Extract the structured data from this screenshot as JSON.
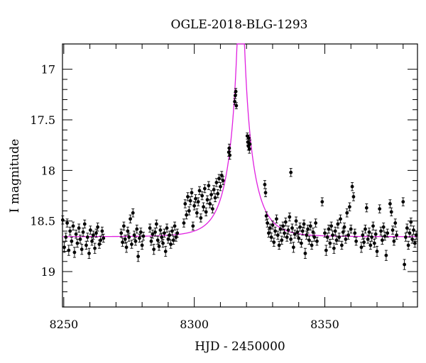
{
  "chart_data": {
    "type": "scatter",
    "title": "OGLE-2018-BLG-1293",
    "xlabel": "HJD - 2450000",
    "ylabel": "I magnitude",
    "xlim": [
      8249.5,
      8385.5
    ],
    "ylim": [
      19.35,
      16.75
    ],
    "y_inverted": true,
    "x_ticks": [
      8250,
      8300,
      8350
    ],
    "y_ticks": [
      17,
      17.5,
      18,
      18.5,
      19
    ],
    "grid": false,
    "colors": {
      "points": "#000000",
      "model": "#e020e0"
    },
    "model": {
      "description_source": "magenta curve",
      "baseline_mag": 18.655,
      "t0": 8317.8,
      "u0": 0.048,
      "tE": 8.5
    },
    "points": [
      [
        8249.6,
        18.49,
        0.04
      ],
      [
        8250.2,
        18.76,
        0.05
      ],
      [
        8250.8,
        18.66,
        0.04
      ],
      [
        8251.3,
        18.52,
        0.04
      ],
      [
        8251.9,
        18.79,
        0.05
      ],
      [
        8252.4,
        18.6,
        0.04
      ],
      [
        8253.0,
        18.7,
        0.04
      ],
      [
        8253.6,
        18.55,
        0.04
      ],
      [
        8254.1,
        18.81,
        0.05
      ],
      [
        8254.7,
        18.63,
        0.04
      ],
      [
        8255.2,
        18.72,
        0.04
      ],
      [
        8255.8,
        18.57,
        0.04
      ],
      [
        8256.3,
        18.68,
        0.04
      ],
      [
        8256.9,
        18.78,
        0.05
      ],
      [
        8257.4,
        18.61,
        0.04
      ],
      [
        8258.0,
        18.53,
        0.04
      ],
      [
        8258.6,
        18.74,
        0.04
      ],
      [
        8259.1,
        18.66,
        0.04
      ],
      [
        8259.7,
        18.82,
        0.05
      ],
      [
        8260.2,
        18.59,
        0.04
      ],
      [
        8260.8,
        18.7,
        0.04
      ],
      [
        8261.3,
        18.64,
        0.04
      ],
      [
        8261.9,
        18.77,
        0.05
      ],
      [
        8262.4,
        18.62,
        0.04
      ],
      [
        8263.0,
        18.56,
        0.04
      ],
      [
        8263.6,
        18.73,
        0.04
      ],
      [
        8264.1,
        18.69,
        0.04
      ],
      [
        8264.7,
        18.6,
        0.04
      ],
      [
        8265.2,
        18.67,
        0.04
      ],
      [
        8272.0,
        18.62,
        0.04
      ],
      [
        8272.5,
        18.71,
        0.04
      ],
      [
        8273.0,
        18.55,
        0.04
      ],
      [
        8273.5,
        18.68,
        0.04
      ],
      [
        8274.0,
        18.76,
        0.05
      ],
      [
        8274.5,
        18.6,
        0.04
      ],
      [
        8275.0,
        18.66,
        0.04
      ],
      [
        8275.5,
        18.48,
        0.04
      ],
      [
        8276.0,
        18.73,
        0.04
      ],
      [
        8276.5,
        18.42,
        0.04
      ],
      [
        8277.0,
        18.64,
        0.04
      ],
      [
        8277.5,
        18.7,
        0.04
      ],
      [
        8278.0,
        18.58,
        0.04
      ],
      [
        8278.5,
        18.85,
        0.05
      ],
      [
        8279.0,
        18.67,
        0.04
      ],
      [
        8279.5,
        18.61,
        0.04
      ],
      [
        8280.0,
        18.74,
        0.04
      ],
      [
        8280.5,
        18.65,
        0.04
      ],
      [
        8283.0,
        18.57,
        0.04
      ],
      [
        8283.5,
        18.7,
        0.04
      ],
      [
        8284.0,
        18.63,
        0.04
      ],
      [
        8284.5,
        18.78,
        0.05
      ],
      [
        8285.0,
        18.61,
        0.04
      ],
      [
        8285.5,
        18.53,
        0.04
      ],
      [
        8286.0,
        18.69,
        0.04
      ],
      [
        8286.5,
        18.75,
        0.04
      ],
      [
        8287.0,
        18.59,
        0.04
      ],
      [
        8287.5,
        18.66,
        0.04
      ],
      [
        8288.0,
        18.72,
        0.04
      ],
      [
        8288.5,
        18.62,
        0.04
      ],
      [
        8289.0,
        18.8,
        0.05
      ],
      [
        8289.5,
        18.57,
        0.04
      ],
      [
        8290.0,
        18.68,
        0.04
      ],
      [
        8290.5,
        18.64,
        0.04
      ],
      [
        8291.0,
        18.73,
        0.04
      ],
      [
        8291.5,
        18.6,
        0.04
      ],
      [
        8292.0,
        18.69,
        0.04
      ],
      [
        8292.5,
        18.55,
        0.04
      ],
      [
        8293.0,
        18.66,
        0.04
      ],
      [
        8293.5,
        18.62,
        0.04
      ],
      [
        8296.0,
        18.52,
        0.04
      ],
      [
        8296.5,
        18.33,
        0.04
      ],
      [
        8297.0,
        18.44,
        0.04
      ],
      [
        8297.5,
        18.26,
        0.04
      ],
      [
        8298.0,
        18.4,
        0.04
      ],
      [
        8298.5,
        18.3,
        0.04
      ],
      [
        8299.0,
        18.22,
        0.04
      ],
      [
        8299.5,
        18.55,
        0.04
      ],
      [
        8300.0,
        18.35,
        0.04
      ],
      [
        8300.5,
        18.28,
        0.04
      ],
      [
        8301.0,
        18.42,
        0.04
      ],
      [
        8301.5,
        18.31,
        0.04
      ],
      [
        8302.0,
        18.2,
        0.04
      ],
      [
        8302.5,
        18.47,
        0.04
      ],
      [
        8303.0,
        18.25,
        0.04
      ],
      [
        8303.5,
        18.36,
        0.04
      ],
      [
        8304.0,
        18.18,
        0.04
      ],
      [
        8304.5,
        18.41,
        0.04
      ],
      [
        8305.0,
        18.29,
        0.04
      ],
      [
        8305.5,
        18.15,
        0.04
      ],
      [
        8306.0,
        18.33,
        0.04
      ],
      [
        8306.5,
        18.24,
        0.04
      ],
      [
        8307.0,
        18.38,
        0.04
      ],
      [
        8307.5,
        18.19,
        0.04
      ],
      [
        8308.0,
        18.27,
        0.04
      ],
      [
        8308.5,
        18.12,
        0.04
      ],
      [
        8309.0,
        18.23,
        0.04
      ],
      [
        8309.5,
        18.08,
        0.04
      ],
      [
        8310.0,
        18.16,
        0.04
      ],
      [
        8310.5,
        18.05,
        0.04
      ],
      [
        8311.0,
        18.1,
        0.04
      ],
      [
        8313.2,
        17.82,
        0.04
      ],
      [
        8313.4,
        17.78,
        0.04
      ],
      [
        8313.6,
        17.85,
        0.04
      ],
      [
        8315.5,
        17.32,
        0.03
      ],
      [
        8315.7,
        17.26,
        0.03
      ],
      [
        8315.9,
        17.22,
        0.03
      ],
      [
        8316.1,
        17.36,
        0.03
      ],
      [
        8320.3,
        17.66,
        0.03
      ],
      [
        8320.5,
        17.72,
        0.03
      ],
      [
        8320.7,
        17.76,
        0.04
      ],
      [
        8320.9,
        17.68,
        0.03
      ],
      [
        8321.1,
        17.79,
        0.04
      ],
      [
        8321.3,
        17.74,
        0.04
      ],
      [
        8327.0,
        18.14,
        0.04
      ],
      [
        8327.3,
        18.22,
        0.04
      ],
      [
        8327.6,
        18.45,
        0.04
      ],
      [
        8328.0,
        18.52,
        0.04
      ],
      [
        8328.5,
        18.62,
        0.04
      ],
      [
        8329.0,
        18.57,
        0.04
      ],
      [
        8329.5,
        18.66,
        0.04
      ],
      [
        8330.0,
        18.54,
        0.04
      ],
      [
        8330.5,
        18.71,
        0.04
      ],
      [
        8331.0,
        18.6,
        0.04
      ],
      [
        8331.5,
        18.48,
        0.04
      ],
      [
        8332.0,
        18.64,
        0.04
      ],
      [
        8332.5,
        18.74,
        0.04
      ],
      [
        8333.0,
        18.58,
        0.04
      ],
      [
        8333.5,
        18.69,
        0.04
      ],
      [
        8334.0,
        18.55,
        0.04
      ],
      [
        8334.5,
        18.62,
        0.04
      ],
      [
        8335.0,
        18.51,
        0.04
      ],
      [
        8335.5,
        18.66,
        0.04
      ],
      [
        8336.0,
        18.59,
        0.04
      ],
      [
        8336.5,
        18.46,
        0.04
      ],
      [
        8337.0,
        18.68,
        0.04
      ],
      [
        8337.5,
        18.57,
        0.04
      ],
      [
        8338.0,
        18.76,
        0.05
      ],
      [
        8338.5,
        18.63,
        0.04
      ],
      [
        8339.0,
        18.5,
        0.04
      ],
      [
        8339.5,
        18.61,
        0.04
      ],
      [
        8340.0,
        18.67,
        0.04
      ],
      [
        8340.5,
        18.56,
        0.04
      ],
      [
        8341.0,
        18.72,
        0.04
      ],
      [
        8341.5,
        18.6,
        0.04
      ],
      [
        8342.0,
        18.53,
        0.04
      ],
      [
        8342.5,
        18.82,
        0.05
      ],
      [
        8343.0,
        18.64,
        0.04
      ],
      [
        8343.5,
        18.58,
        0.04
      ],
      [
        8344.0,
        18.69,
        0.04
      ],
      [
        8344.5,
        18.55,
        0.04
      ],
      [
        8345.0,
        18.74,
        0.04
      ],
      [
        8345.5,
        18.61,
        0.04
      ],
      [
        8346.0,
        18.66,
        0.04
      ],
      [
        8346.5,
        18.52,
        0.04
      ],
      [
        8347.0,
        18.7,
        0.04
      ],
      [
        8337.0,
        18.02,
        0.04
      ],
      [
        8349.0,
        18.31,
        0.04
      ],
      [
        8350.0,
        18.62,
        0.04
      ],
      [
        8350.5,
        18.79,
        0.05
      ],
      [
        8351.0,
        18.66,
        0.04
      ],
      [
        8351.5,
        18.58,
        0.04
      ],
      [
        8352.0,
        18.72,
        0.04
      ],
      [
        8352.5,
        18.55,
        0.04
      ],
      [
        8353.0,
        18.64,
        0.04
      ],
      [
        8353.5,
        18.77,
        0.05
      ],
      [
        8354.0,
        18.6,
        0.04
      ],
      [
        8354.5,
        18.69,
        0.04
      ],
      [
        8355.0,
        18.53,
        0.04
      ],
      [
        8355.5,
        18.66,
        0.04
      ],
      [
        8356.0,
        18.48,
        0.04
      ],
      [
        8356.5,
        18.74,
        0.04
      ],
      [
        8357.0,
        18.61,
        0.04
      ],
      [
        8357.5,
        18.56,
        0.04
      ],
      [
        8358.0,
        18.68,
        0.04
      ],
      [
        8358.5,
        18.42,
        0.04
      ],
      [
        8359.0,
        18.64,
        0.04
      ],
      [
        8359.5,
        18.36,
        0.04
      ],
      [
        8360.0,
        18.58,
        0.04
      ],
      [
        8360.5,
        18.16,
        0.04
      ],
      [
        8361.0,
        18.26,
        0.04
      ],
      [
        8361.5,
        18.62,
        0.04
      ],
      [
        8362.0,
        18.7,
        0.04
      ],
      [
        8364.0,
        18.76,
        0.05
      ],
      [
        8364.5,
        18.64,
        0.04
      ],
      [
        8365.0,
        18.71,
        0.04
      ],
      [
        8365.5,
        18.58,
        0.04
      ],
      [
        8366.0,
        18.37,
        0.04
      ],
      [
        8366.5,
        18.68,
        0.04
      ],
      [
        8367.0,
        18.61,
        0.04
      ],
      [
        8367.5,
        18.74,
        0.04
      ],
      [
        8368.0,
        18.66,
        0.04
      ],
      [
        8368.5,
        18.55,
        0.04
      ],
      [
        8369.0,
        18.72,
        0.04
      ],
      [
        8369.5,
        18.63,
        0.04
      ],
      [
        8370.0,
        18.8,
        0.05
      ],
      [
        8371.0,
        18.38,
        0.04
      ],
      [
        8371.5,
        18.6,
        0.04
      ],
      [
        8372.0,
        18.69,
        0.04
      ],
      [
        8372.5,
        18.56,
        0.04
      ],
      [
        8373.0,
        18.65,
        0.04
      ],
      [
        8373.5,
        18.84,
        0.05
      ],
      [
        8374.0,
        18.62,
        0.04
      ],
      [
        8375.0,
        18.33,
        0.04
      ],
      [
        8375.5,
        18.41,
        0.04
      ],
      [
        8376.0,
        18.59,
        0.04
      ],
      [
        8376.5,
        18.7,
        0.04
      ],
      [
        8377.0,
        18.52,
        0.04
      ],
      [
        8377.5,
        18.64,
        0.04
      ],
      [
        8380.0,
        18.31,
        0.04
      ],
      [
        8380.5,
        18.93,
        0.05
      ],
      [
        8381.0,
        18.66,
        0.04
      ],
      [
        8381.5,
        18.57,
        0.04
      ],
      [
        8382.0,
        18.74,
        0.04
      ],
      [
        8382.5,
        18.62,
        0.04
      ],
      [
        8383.0,
        18.51,
        0.04
      ],
      [
        8383.5,
        18.68,
        0.04
      ],
      [
        8384.0,
        18.59,
        0.04
      ],
      [
        8384.5,
        18.72,
        0.04
      ],
      [
        8385.0,
        18.64,
        0.04
      ]
    ]
  }
}
